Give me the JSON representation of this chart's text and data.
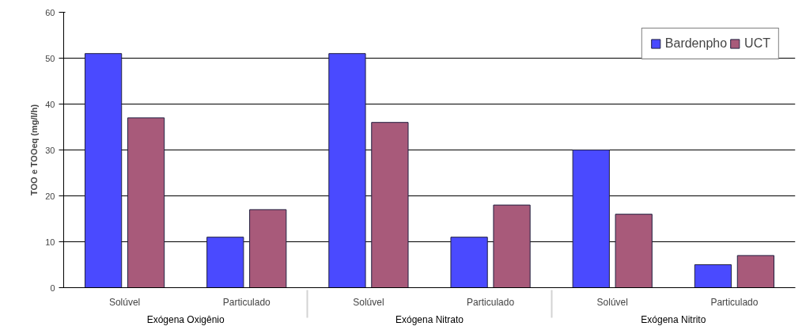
{
  "chart_data": {
    "type": "bar",
    "ylabel": "TOO e TOOeq (mg/l/h)",
    "categories": [
      "Solúvel",
      "Particulado",
      "Solúvel",
      "Particulado",
      "Solúvel",
      "Particulado"
    ],
    "annotations": [
      "Exógena Oxigênio",
      "Exógena Nitrato",
      "Exógena Nitrito"
    ],
    "series": [
      {
        "name": "Bardenpho",
        "color": "#4a4aff",
        "values": [
          51,
          11,
          51,
          11,
          30,
          5
        ]
      },
      {
        "name": "UCT",
        "color": "#a85a7a",
        "values": [
          37,
          17,
          36,
          18,
          16,
          7
        ]
      }
    ],
    "ylim": [
      0,
      60
    ],
    "yticks": [
      0,
      10,
      20,
      30,
      40,
      50,
      60
    ],
    "grid": "y",
    "legend": "top right"
  }
}
